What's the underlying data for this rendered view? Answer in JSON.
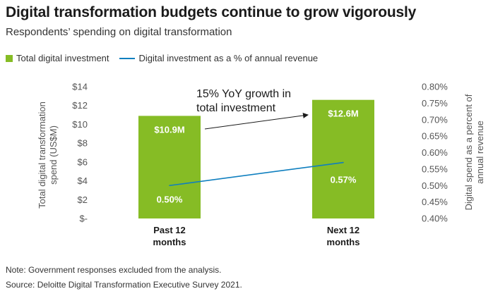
{
  "title": "Digital transformation budgets continue to grow vigorously",
  "subtitle": "Respondents’ spending on digital transformation",
  "colors": {
    "bar": "#86bc25",
    "line": "#0f7fbf",
    "axis_text": "#555555",
    "bar_label": "#ffffff"
  },
  "legend": [
    {
      "label": "Total digital investment",
      "kind": "box",
      "color": "#86bc25"
    },
    {
      "label": "Digital investment as a % of annual revenue",
      "kind": "line",
      "color": "#0f7fbf"
    }
  ],
  "chart_data": {
    "type": "bar",
    "title": "Digital transformation budgets continue to grow vigorously",
    "subtitle": "Respondents’ spending on digital transformation",
    "categories": [
      "Past 12 months",
      "Next 12 months"
    ],
    "category_lines": [
      [
        "Past 12",
        "months"
      ],
      [
        "Next 12",
        "months"
      ]
    ],
    "series": [
      {
        "name": "Total digital investment",
        "type": "bar",
        "axis": "left",
        "values": [
          10.9,
          12.6
        ],
        "labels": [
          "$10.9M",
          "$12.6M"
        ]
      },
      {
        "name": "Digital investment as a % of annual revenue",
        "type": "line",
        "axis": "right",
        "values": [
          0.5,
          0.57
        ],
        "labels": [
          "0.50%",
          "0.57%"
        ]
      }
    ],
    "ylabel_left_lines": [
      "Total digital transformation",
      "spend (US$M)"
    ],
    "ylabel_right_lines": [
      "Digital spend as a percent of",
      "annual revenue"
    ],
    "ylim_left": [
      0,
      14
    ],
    "ylim_right": [
      0.4,
      0.8
    ],
    "left_ticks": [
      0,
      2,
      4,
      6,
      8,
      10,
      12,
      14
    ],
    "left_tick_labels": [
      "$-",
      "$2",
      "$4",
      "$6",
      "$8",
      "$10",
      "$12",
      "$14"
    ],
    "right_ticks": [
      0.4,
      0.45,
      0.5,
      0.55,
      0.6,
      0.65,
      0.7,
      0.75,
      0.8
    ],
    "right_tick_labels": [
      "0.40%",
      "0.45%",
      "0.50%",
      "0.55%",
      "0.60%",
      "0.65%",
      "0.70%",
      "0.75%",
      "0.80%"
    ],
    "annotation_lines": [
      "15% YoY growth in",
      "total investment"
    ],
    "grid": false,
    "legend_position": "top-left"
  },
  "footnotes": [
    "Note: Government responses excluded from the analysis.",
    "Source: Deloitte Digital Transformation Executive Survey 2021."
  ]
}
